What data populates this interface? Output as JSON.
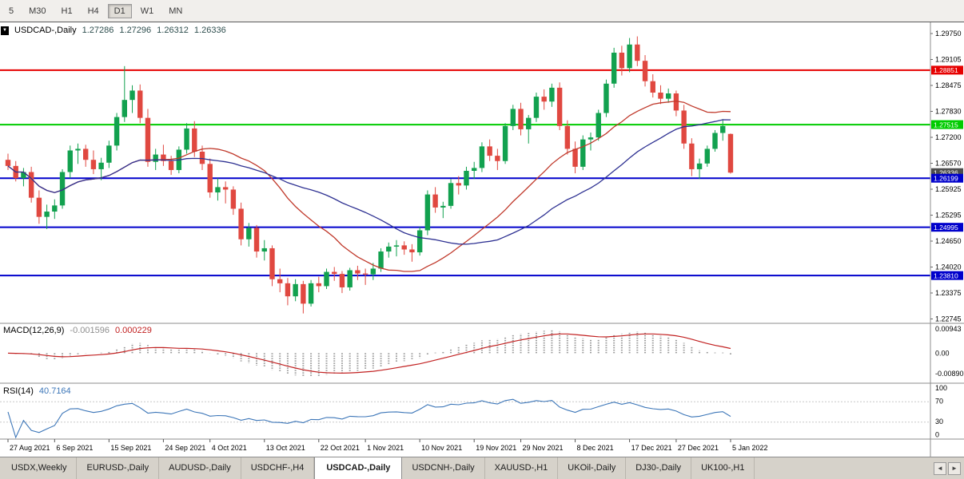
{
  "toolbar": {
    "periods": [
      {
        "label": "5",
        "active": false
      },
      {
        "label": "M30",
        "active": false
      },
      {
        "label": "H1",
        "active": false
      },
      {
        "label": "H4",
        "active": false
      },
      {
        "label": "D1",
        "active": true
      },
      {
        "label": "W1",
        "active": false
      },
      {
        "label": "MN",
        "active": false
      }
    ]
  },
  "chart": {
    "title": "USDCAD-,Daily",
    "ohlc": {
      "open": "1.27286",
      "high": "1.27296",
      "low": "1.26312",
      "close": "1.26336"
    },
    "collapse_glyph": "▼"
  },
  "chart_data": {
    "type": "candlestick",
    "title": "USDCAD-,Daily",
    "y_axis": {
      "max": 1.2975,
      "min": 1.22745,
      "labels": [
        "1.29750",
        "1.29105",
        "1.28475",
        "1.27830",
        "1.27200",
        "1.26570",
        "1.25925",
        "1.25295",
        "1.24650",
        "1.24020",
        "1.23375",
        "1.22745"
      ]
    },
    "x_labels": [
      [
        "27 Aug 2021",
        0
      ],
      [
        "6 Sep 2021",
        6
      ],
      [
        "15 Sep 2021",
        13
      ],
      [
        "24 Sep 2021",
        20
      ],
      [
        "4 Oct 2021",
        26
      ],
      [
        "13 Oct 2021",
        33
      ],
      [
        "22 Oct 2021",
        40
      ],
      [
        "1 Nov 2021",
        46
      ],
      [
        "10 Nov 2021",
        53
      ],
      [
        "19 Nov 2021",
        60
      ],
      [
        "29 Nov 2021",
        66
      ],
      [
        "8 Dec 2021",
        73
      ],
      [
        "17 Dec 2021",
        80
      ],
      [
        "27 Dec 2021",
        86
      ],
      [
        "5 Jan 2022",
        93
      ]
    ],
    "candles": [
      [
        1.2665,
        1.268,
        1.264,
        1.265
      ],
      [
        1.265,
        1.2662,
        1.2612,
        1.262
      ],
      [
        1.262,
        1.2645,
        1.26,
        1.2635
      ],
      [
        1.2635,
        1.2648,
        1.256,
        1.2572
      ],
      [
        1.2572,
        1.259,
        1.2508,
        1.2525
      ],
      [
        1.2525,
        1.2555,
        1.2495,
        1.2538
      ],
      [
        1.2538,
        1.2568,
        1.252,
        1.2553
      ],
      [
        1.2553,
        1.2642,
        1.2545,
        1.2635
      ],
      [
        1.2635,
        1.27,
        1.262,
        1.2688
      ],
      [
        1.2688,
        1.2705,
        1.2655,
        1.2692
      ],
      [
        1.2692,
        1.2702,
        1.2648,
        1.2665
      ],
      [
        1.2665,
        1.2688,
        1.263,
        1.2642
      ],
      [
        1.2642,
        1.267,
        1.2615,
        1.2658
      ],
      [
        1.2658,
        1.2712,
        1.2645,
        1.27
      ],
      [
        1.27,
        1.278,
        1.2688,
        1.277
      ],
      [
        1.277,
        1.2895,
        1.2758,
        1.2812
      ],
      [
        1.2812,
        1.2848,
        1.278,
        1.2835
      ],
      [
        1.2835,
        1.285,
        1.2755,
        1.2768
      ],
      [
        1.2768,
        1.279,
        1.2648,
        1.266
      ],
      [
        1.266,
        1.2692,
        1.264,
        1.2678
      ],
      [
        1.2678,
        1.2702,
        1.265,
        1.2662
      ],
      [
        1.2662,
        1.2675,
        1.2628,
        1.264
      ],
      [
        1.264,
        1.2698,
        1.2632,
        1.269
      ],
      [
        1.269,
        1.2755,
        1.268,
        1.2742
      ],
      [
        1.2742,
        1.276,
        1.2672,
        1.2685
      ],
      [
        1.2685,
        1.27,
        1.264,
        1.2655
      ],
      [
        1.2655,
        1.2668,
        1.2572,
        1.2585
      ],
      [
        1.2585,
        1.262,
        1.2565,
        1.2598
      ],
      [
        1.2598,
        1.2612,
        1.2558,
        1.2592
      ],
      [
        1.2592,
        1.26,
        1.253,
        1.2545
      ],
      [
        1.2545,
        1.256,
        1.2455,
        1.247
      ],
      [
        1.247,
        1.251,
        1.2452,
        1.2498
      ],
      [
        1.2498,
        1.2505,
        1.2425,
        1.244
      ],
      [
        1.244,
        1.2468,
        1.2418,
        1.2448
      ],
      [
        1.2448,
        1.2455,
        1.2355,
        1.2372
      ],
      [
        1.2372,
        1.2398,
        1.234,
        1.2362
      ],
      [
        1.2362,
        1.2375,
        1.2308,
        1.233
      ],
      [
        1.233,
        1.2372,
        1.2318,
        1.236
      ],
      [
        1.236,
        1.2368,
        1.2288,
        1.2312
      ],
      [
        1.2312,
        1.237,
        1.2305,
        1.2362
      ],
      [
        1.2362,
        1.2378,
        1.234,
        1.2355
      ],
      [
        1.2355,
        1.2398,
        1.2348,
        1.239
      ],
      [
        1.239,
        1.2402,
        1.2368,
        1.2385
      ],
      [
        1.2385,
        1.2392,
        1.2338,
        1.2352
      ],
      [
        1.2352,
        1.24,
        1.2344,
        1.2394
      ],
      [
        1.2394,
        1.2405,
        1.237,
        1.2386
      ],
      [
        1.2386,
        1.2398,
        1.2358,
        1.2384
      ],
      [
        1.2384,
        1.2412,
        1.237,
        1.2398
      ],
      [
        1.2398,
        1.2448,
        1.239,
        1.244
      ],
      [
        1.244,
        1.2462,
        1.2425,
        1.2452
      ],
      [
        1.2452,
        1.2468,
        1.2428,
        1.2455
      ],
      [
        1.2455,
        1.2465,
        1.2432,
        1.2445
      ],
      [
        1.2445,
        1.2458,
        1.2415,
        1.2438
      ],
      [
        1.2438,
        1.25,
        1.243,
        1.2492
      ],
      [
        1.2492,
        1.259,
        1.248,
        1.258
      ],
      [
        1.258,
        1.2598,
        1.2535,
        1.2548
      ],
      [
        1.2548,
        1.2562,
        1.2522,
        1.2552
      ],
      [
        1.2552,
        1.2618,
        1.2545,
        1.2608
      ],
      [
        1.2608,
        1.2625,
        1.258,
        1.2602
      ],
      [
        1.2602,
        1.2648,
        1.2592,
        1.2638
      ],
      [
        1.2638,
        1.266,
        1.2618,
        1.2645
      ],
      [
        1.2645,
        1.2708,
        1.2635,
        1.2698
      ],
      [
        1.2698,
        1.2715,
        1.2662,
        1.2675
      ],
      [
        1.2675,
        1.2692,
        1.264,
        1.2662
      ],
      [
        1.2662,
        1.2755,
        1.2655,
        1.2748
      ],
      [
        1.2748,
        1.28,
        1.2738,
        1.279
      ],
      [
        1.279,
        1.2805,
        1.2725,
        1.274
      ],
      [
        1.274,
        1.2775,
        1.2705,
        1.2768
      ],
      [
        1.2768,
        1.283,
        1.2758,
        1.282
      ],
      [
        1.282,
        1.2838,
        1.2788,
        1.2808
      ],
      [
        1.2808,
        1.2852,
        1.2795,
        1.2842
      ],
      [
        1.2842,
        1.2855,
        1.2738,
        1.2748
      ],
      [
        1.2748,
        1.2762,
        1.2678,
        1.2692
      ],
      [
        1.2692,
        1.271,
        1.2632,
        1.2648
      ],
      [
        1.2648,
        1.2725,
        1.264,
        1.2715
      ],
      [
        1.2715,
        1.2732,
        1.2688,
        1.272
      ],
      [
        1.272,
        1.2788,
        1.2712,
        1.278
      ],
      [
        1.278,
        1.2862,
        1.277,
        1.2852
      ],
      [
        1.2852,
        1.294,
        1.2842,
        1.2928
      ],
      [
        1.2928,
        1.2945,
        1.2872,
        1.289
      ],
      [
        1.289,
        1.2964,
        1.288,
        1.2948
      ],
      [
        1.2948,
        1.2968,
        1.2895,
        1.2908
      ],
      [
        1.2908,
        1.2922,
        1.2845,
        1.2858
      ],
      [
        1.2858,
        1.2875,
        1.2818,
        1.283
      ],
      [
        1.283,
        1.2848,
        1.2802,
        1.2815
      ],
      [
        1.2815,
        1.284,
        1.2805,
        1.2828
      ],
      [
        1.2828,
        1.2835,
        1.2772,
        1.2786
      ],
      [
        1.2786,
        1.28,
        1.2692,
        1.2705
      ],
      [
        1.2705,
        1.2718,
        1.2625,
        1.2642
      ],
      [
        1.2642,
        1.2668,
        1.2618,
        1.2656
      ],
      [
        1.2656,
        1.27,
        1.2648,
        1.2692
      ],
      [
        1.2692,
        1.2738,
        1.2685,
        1.2731
      ],
      [
        1.2731,
        1.2765,
        1.2712,
        1.2748
      ],
      [
        1.27286,
        1.27296,
        1.26312,
        1.26336
      ]
    ],
    "hlines": [
      {
        "price": 1.28851,
        "label": "1.28851",
        "color": "#e60000"
      },
      {
        "price": 1.27515,
        "label": "1.27515",
        "color": "#00cc00"
      },
      {
        "price": 1.26199,
        "label": "1.26199",
        "color": "#0000cc"
      },
      {
        "price": 1.24995,
        "label": "1.24995",
        "color": "#0000cc"
      },
      {
        "price": 1.2381,
        "label": "1.23810",
        "color": "#0000cc"
      }
    ],
    "current_price": {
      "value": 1.26336,
      "label": "1.26336",
      "color": "#4d4d4d"
    },
    "moving_averages": [
      {
        "type": "sma",
        "period": 20,
        "color": "#c0392b"
      },
      {
        "type": "sma",
        "period": 34,
        "color": "#2e3192"
      }
    ],
    "indicators": {
      "macd": {
        "label": "MACD(12,26,9)",
        "main_value": "-0.001596",
        "signal_value": "0.000229",
        "axis": [
          "0.00943",
          "0.00",
          "-0.00890"
        ],
        "fast": 12,
        "slow": 26,
        "signal": 9
      },
      "rsi": {
        "label": "RSI(14)",
        "value": "40.7164",
        "period": 14,
        "axis": [
          "100",
          "70",
          "30",
          "0"
        ],
        "levels": [
          70,
          30
        ]
      }
    },
    "colors": {
      "up": "#12a14f",
      "down": "#e04840",
      "macd_hist": "#9a9a9a",
      "macd_signal": "#c22222",
      "rsi_line": "#3c76b8",
      "frame": "#8c8c8c",
      "axis_text": "#000000"
    },
    "legend_position": "none",
    "grid": false
  },
  "tabs": {
    "items": [
      {
        "label": "USDX,Weekly",
        "active": false
      },
      {
        "label": "EURUSD-,Daily",
        "active": false
      },
      {
        "label": "AUDUSD-,Daily",
        "active": false
      },
      {
        "label": "USDCHF-,H4",
        "active": false
      },
      {
        "label": "USDCAD-,Daily",
        "active": true
      },
      {
        "label": "USDCNH-,Daily",
        "active": false
      },
      {
        "label": "XAUUSD-,H1",
        "active": false
      },
      {
        "label": "UKOil-,Daily",
        "active": false
      },
      {
        "label": "DJ30-,Daily",
        "active": false
      },
      {
        "label": "UK100-,H1",
        "active": false
      }
    ],
    "scroll_left_glyph": "◄",
    "scroll_right_glyph": "►"
  }
}
